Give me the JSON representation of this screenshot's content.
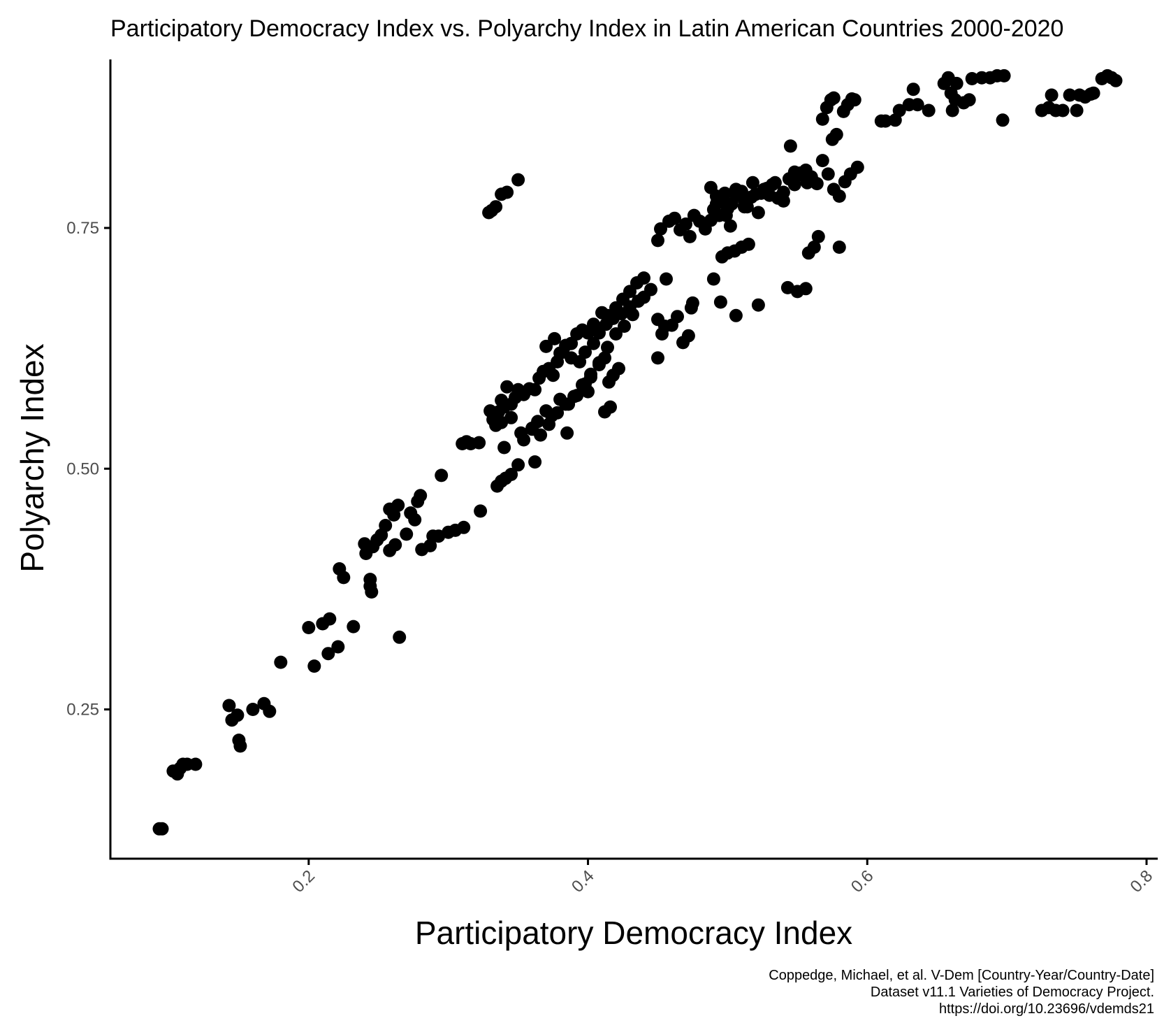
{
  "chart_data": {
    "type": "scatter",
    "title": "Participatory Democracy Index vs. Polyarchy Index in Latin American Countries 2000-2020",
    "xlabel": "Participatory Democracy Index",
    "ylabel": "Polyarchy Index",
    "xlim": [
      0.058,
      0.808
    ],
    "ylim": [
      0.095,
      0.925
    ],
    "x_ticks": [
      0.2,
      0.4,
      0.6,
      0.8
    ],
    "x_tick_labels": [
      "0.2",
      "0.4",
      "0.6",
      "0.8"
    ],
    "y_ticks": [
      0.25,
      0.5,
      0.75
    ],
    "y_tick_labels": [
      "0.25",
      "0.50",
      "0.75"
    ],
    "grid": false,
    "legend": "none",
    "point_color": "#000000",
    "caption": [
      "Coppedge, Michael, et al. V-Dem [Country-Year/Country-Date]",
      "Dataset v11.1 Varieties of Democracy Project.",
      "https://doi.org/10.23696/vdemds21"
    ],
    "points": [
      [
        0.093,
        0.126
      ],
      [
        0.095,
        0.126
      ],
      [
        0.103,
        0.186
      ],
      [
        0.106,
        0.183
      ],
      [
        0.108,
        0.189
      ],
      [
        0.11,
        0.193
      ],
      [
        0.113,
        0.193
      ],
      [
        0.119,
        0.193
      ],
      [
        0.143,
        0.254
      ],
      [
        0.145,
        0.239
      ],
      [
        0.149,
        0.244
      ],
      [
        0.15,
        0.218
      ],
      [
        0.151,
        0.212
      ],
      [
        0.16,
        0.25
      ],
      [
        0.168,
        0.256
      ],
      [
        0.172,
        0.248
      ],
      [
        0.18,
        0.299
      ],
      [
        0.2,
        0.335
      ],
      [
        0.204,
        0.295
      ],
      [
        0.21,
        0.339
      ],
      [
        0.215,
        0.344
      ],
      [
        0.214,
        0.308
      ],
      [
        0.221,
        0.315
      ],
      [
        0.222,
        0.396
      ],
      [
        0.225,
        0.387
      ],
      [
        0.232,
        0.336
      ],
      [
        0.24,
        0.422
      ],
      [
        0.241,
        0.412
      ],
      [
        0.244,
        0.385
      ],
      [
        0.245,
        0.372
      ],
      [
        0.244,
        0.378
      ],
      [
        0.246,
        0.419
      ],
      [
        0.249,
        0.426
      ],
      [
        0.252,
        0.431
      ],
      [
        0.255,
        0.441
      ],
      [
        0.258,
        0.415
      ],
      [
        0.262,
        0.421
      ],
      [
        0.258,
        0.458
      ],
      [
        0.261,
        0.452
      ],
      [
        0.264,
        0.462
      ],
      [
        0.265,
        0.325
      ],
      [
        0.27,
        0.432
      ],
      [
        0.273,
        0.454
      ],
      [
        0.276,
        0.447
      ],
      [
        0.278,
        0.466
      ],
      [
        0.28,
        0.472
      ],
      [
        0.281,
        0.416
      ],
      [
        0.287,
        0.42
      ],
      [
        0.289,
        0.43
      ],
      [
        0.293,
        0.43
      ],
      [
        0.295,
        0.493
      ],
      [
        0.3,
        0.434
      ],
      [
        0.305,
        0.436
      ],
      [
        0.311,
        0.439
      ],
      [
        0.31,
        0.526
      ],
      [
        0.313,
        0.528
      ],
      [
        0.316,
        0.526
      ],
      [
        0.322,
        0.527
      ],
      [
        0.323,
        0.456
      ],
      [
        0.33,
        0.56
      ],
      [
        0.332,
        0.551
      ],
      [
        0.334,
        0.545
      ],
      [
        0.336,
        0.559
      ],
      [
        0.338,
        0.571
      ],
      [
        0.34,
        0.564
      ],
      [
        0.342,
        0.585
      ],
      [
        0.345,
        0.567
      ],
      [
        0.348,
        0.574
      ],
      [
        0.35,
        0.582
      ],
      [
        0.354,
        0.577
      ],
      [
        0.358,
        0.583
      ],
      [
        0.362,
        0.582
      ],
      [
        0.365,
        0.594
      ],
      [
        0.368,
        0.601
      ],
      [
        0.372,
        0.604
      ],
      [
        0.375,
        0.597
      ],
      [
        0.378,
        0.611
      ],
      [
        0.38,
        0.62
      ],
      [
        0.384,
        0.628
      ],
      [
        0.388,
        0.63
      ],
      [
        0.392,
        0.64
      ],
      [
        0.396,
        0.644
      ],
      [
        0.4,
        0.641
      ],
      [
        0.404,
        0.65
      ],
      [
        0.41,
        0.662
      ],
      [
        0.414,
        0.659
      ],
      [
        0.42,
        0.667
      ],
      [
        0.425,
        0.676
      ],
      [
        0.43,
        0.684
      ],
      [
        0.435,
        0.693
      ],
      [
        0.44,
        0.698
      ],
      [
        0.338,
        0.548
      ],
      [
        0.345,
        0.553
      ],
      [
        0.352,
        0.537
      ],
      [
        0.36,
        0.541
      ],
      [
        0.364,
        0.549
      ],
      [
        0.37,
        0.56
      ],
      [
        0.374,
        0.555
      ],
      [
        0.38,
        0.572
      ],
      [
        0.386,
        0.567
      ],
      [
        0.392,
        0.576
      ],
      [
        0.398,
        0.588
      ],
      [
        0.402,
        0.598
      ],
      [
        0.408,
        0.61
      ],
      [
        0.414,
        0.626
      ],
      [
        0.42,
        0.64
      ],
      [
        0.426,
        0.648
      ],
      [
        0.432,
        0.66
      ],
      [
        0.335,
        0.482
      ],
      [
        0.338,
        0.487
      ],
      [
        0.341,
        0.49
      ],
      [
        0.345,
        0.494
      ],
      [
        0.35,
        0.504
      ],
      [
        0.354,
        0.53
      ],
      [
        0.36,
        0.542
      ],
      [
        0.366,
        0.535
      ],
      [
        0.372,
        0.546
      ],
      [
        0.378,
        0.558
      ],
      [
        0.384,
        0.567
      ],
      [
        0.39,
        0.575
      ],
      [
        0.396,
        0.587
      ],
      [
        0.402,
        0.595
      ],
      [
        0.408,
        0.608
      ],
      [
        0.412,
        0.615
      ],
      [
        0.415,
        0.59
      ],
      [
        0.418,
        0.597
      ],
      [
        0.422,
        0.604
      ],
      [
        0.34,
        0.522
      ],
      [
        0.362,
        0.507
      ],
      [
        0.385,
        0.537
      ],
      [
        0.4,
        0.58
      ],
      [
        0.412,
        0.559
      ],
      [
        0.416,
        0.564
      ],
      [
        0.37,
        0.627
      ],
      [
        0.376,
        0.635
      ],
      [
        0.382,
        0.621
      ],
      [
        0.388,
        0.615
      ],
      [
        0.394,
        0.611
      ],
      [
        0.398,
        0.621
      ],
      [
        0.404,
        0.63
      ],
      [
        0.408,
        0.641
      ],
      [
        0.413,
        0.65
      ],
      [
        0.418,
        0.656
      ],
      [
        0.424,
        0.661
      ],
      [
        0.43,
        0.668
      ],
      [
        0.436,
        0.674
      ],
      [
        0.44,
        0.678
      ],
      [
        0.445,
        0.686
      ],
      [
        0.45,
        0.655
      ],
      [
        0.455,
        0.648
      ],
      [
        0.46,
        0.649
      ],
      [
        0.464,
        0.658
      ],
      [
        0.468,
        0.631
      ],
      [
        0.472,
        0.638
      ],
      [
        0.474,
        0.667
      ],
      [
        0.475,
        0.672
      ],
      [
        0.45,
        0.615
      ],
      [
        0.453,
        0.64
      ],
      [
        0.456,
        0.697
      ],
      [
        0.45,
        0.737
      ],
      [
        0.452,
        0.749
      ],
      [
        0.458,
        0.757
      ],
      [
        0.462,
        0.76
      ],
      [
        0.466,
        0.748
      ],
      [
        0.47,
        0.754
      ],
      [
        0.473,
        0.741
      ],
      [
        0.476,
        0.763
      ],
      [
        0.48,
        0.757
      ],
      [
        0.484,
        0.749
      ],
      [
        0.488,
        0.758
      ],
      [
        0.49,
        0.769
      ],
      [
        0.492,
        0.775
      ],
      [
        0.494,
        0.763
      ],
      [
        0.496,
        0.78
      ],
      [
        0.498,
        0.786
      ],
      [
        0.5,
        0.77
      ],
      [
        0.503,
        0.775
      ],
      [
        0.506,
        0.79
      ],
      [
        0.51,
        0.788
      ],
      [
        0.512,
        0.779
      ],
      [
        0.514,
        0.772
      ],
      [
        0.517,
        0.782
      ],
      [
        0.52,
        0.785
      ],
      [
        0.524,
        0.786
      ],
      [
        0.528,
        0.791
      ],
      [
        0.532,
        0.795
      ],
      [
        0.536,
        0.781
      ],
      [
        0.54,
        0.787
      ],
      [
        0.544,
        0.801
      ],
      [
        0.548,
        0.808
      ],
      [
        0.552,
        0.805
      ],
      [
        0.556,
        0.81
      ],
      [
        0.56,
        0.803
      ],
      [
        0.564,
        0.796
      ],
      [
        0.568,
        0.82
      ],
      [
        0.572,
        0.806
      ],
      [
        0.576,
        0.79
      ],
      [
        0.58,
        0.783
      ],
      [
        0.584,
        0.798
      ],
      [
        0.588,
        0.806
      ],
      [
        0.593,
        0.813
      ],
      [
        0.488,
        0.792
      ],
      [
        0.492,
        0.783
      ],
      [
        0.496,
        0.778
      ],
      [
        0.499,
        0.763
      ],
      [
        0.502,
        0.752
      ],
      [
        0.506,
        0.784
      ],
      [
        0.512,
        0.772
      ],
      [
        0.518,
        0.797
      ],
      [
        0.522,
        0.766
      ],
      [
        0.526,
        0.79
      ],
      [
        0.53,
        0.784
      ],
      [
        0.534,
        0.797
      ],
      [
        0.54,
        0.778
      ],
      [
        0.545,
        0.835
      ],
      [
        0.548,
        0.795
      ],
      [
        0.552,
        0.807
      ],
      [
        0.557,
        0.797
      ],
      [
        0.49,
        0.697
      ],
      [
        0.495,
        0.673
      ],
      [
        0.496,
        0.72
      ],
      [
        0.5,
        0.724
      ],
      [
        0.505,
        0.726
      ],
      [
        0.51,
        0.73
      ],
      [
        0.515,
        0.733
      ],
      [
        0.506,
        0.659
      ],
      [
        0.522,
        0.67
      ],
      [
        0.543,
        0.688
      ],
      [
        0.55,
        0.684
      ],
      [
        0.556,
        0.687
      ],
      [
        0.558,
        0.724
      ],
      [
        0.562,
        0.73
      ],
      [
        0.565,
        0.741
      ],
      [
        0.58,
        0.73
      ],
      [
        0.568,
        0.863
      ],
      [
        0.571,
        0.875
      ],
      [
        0.574,
        0.883
      ],
      [
        0.576,
        0.885
      ],
      [
        0.575,
        0.842
      ],
      [
        0.578,
        0.847
      ],
      [
        0.583,
        0.871
      ],
      [
        0.586,
        0.878
      ],
      [
        0.589,
        0.884
      ],
      [
        0.591,
        0.883
      ],
      [
        0.61,
        0.861
      ],
      [
        0.613,
        0.861
      ],
      [
        0.62,
        0.862
      ],
      [
        0.623,
        0.872
      ],
      [
        0.63,
        0.878
      ],
      [
        0.633,
        0.894
      ],
      [
        0.636,
        0.878
      ],
      [
        0.644,
        0.872
      ],
      [
        0.655,
        0.9
      ],
      [
        0.658,
        0.906
      ],
      [
        0.66,
        0.89
      ],
      [
        0.661,
        0.872
      ],
      [
        0.663,
        0.883
      ],
      [
        0.664,
        0.9
      ],
      [
        0.669,
        0.88
      ],
      [
        0.673,
        0.883
      ],
      [
        0.675,
        0.905
      ],
      [
        0.682,
        0.906
      ],
      [
        0.688,
        0.906
      ],
      [
        0.693,
        0.908
      ],
      [
        0.698,
        0.908
      ],
      [
        0.697,
        0.862
      ],
      [
        0.725,
        0.872
      ],
      [
        0.73,
        0.875
      ],
      [
        0.732,
        0.888
      ],
      [
        0.735,
        0.872
      ],
      [
        0.74,
        0.872
      ],
      [
        0.745,
        0.888
      ],
      [
        0.75,
        0.872
      ],
      [
        0.752,
        0.888
      ],
      [
        0.756,
        0.886
      ],
      [
        0.76,
        0.889
      ],
      [
        0.762,
        0.89
      ],
      [
        0.768,
        0.905
      ],
      [
        0.772,
        0.908
      ],
      [
        0.775,
        0.906
      ],
      [
        0.778,
        0.903
      ],
      [
        0.329,
        0.766
      ],
      [
        0.331,
        0.768
      ],
      [
        0.334,
        0.772
      ],
      [
        0.338,
        0.785
      ],
      [
        0.342,
        0.787
      ],
      [
        0.35,
        0.8
      ]
    ]
  }
}
